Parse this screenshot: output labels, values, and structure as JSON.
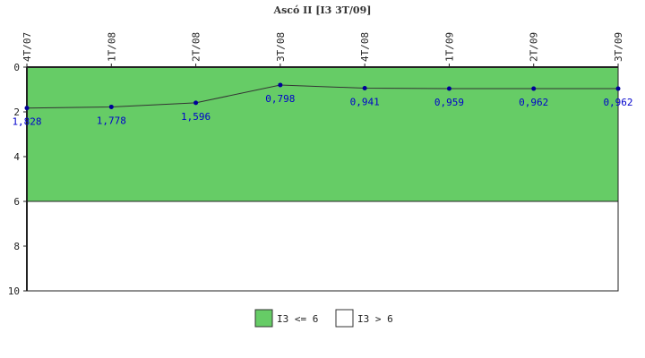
{
  "chart_data": {
    "type": "line",
    "title": "Ascó II [I3 3T/09]",
    "categories": [
      "4T/07",
      "1T/08",
      "2T/08",
      "3T/08",
      "4T/08",
      "1T/09",
      "2T/09",
      "3T/09"
    ],
    "values": [
      1.828,
      1.778,
      1.596,
      0.798,
      0.941,
      0.959,
      0.962,
      0.962
    ],
    "data_labels": [
      "1,828",
      "1,778",
      "1,596",
      "0,798",
      "0,941",
      "0,959",
      "0,962",
      "0,962"
    ],
    "y_ticks": [
      0,
      2,
      4,
      6,
      8,
      10
    ],
    "ylim": [
      0,
      10
    ],
    "y_inverted": true,
    "threshold": 6,
    "bands": [
      {
        "label": "I3 <= 6",
        "from": 0,
        "to": 6,
        "color": "#66cc66"
      },
      {
        "label": "I3 > 6",
        "from": 6,
        "to": 10,
        "color": "#ffffff"
      }
    ],
    "line_color": "#333333",
    "marker_color": "#000099",
    "label_color": "#0000cc",
    "legend_position": "bottom-center"
  }
}
